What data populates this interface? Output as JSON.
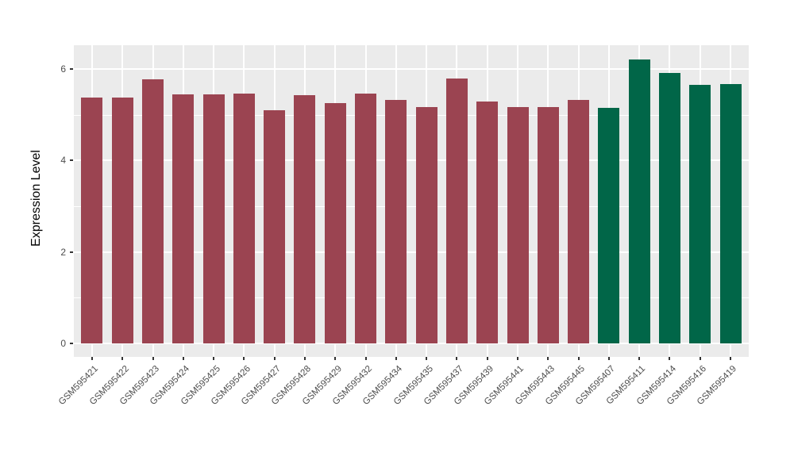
{
  "chart_data": {
    "type": "bar",
    "title": "",
    "xlabel": "",
    "ylabel": "Expression Level",
    "ylim": [
      -0.3,
      6.52
    ],
    "yticks": [
      0,
      2,
      4,
      6
    ],
    "yticks_minor": [
      1,
      3,
      5
    ],
    "grid": "on",
    "legend_position": "none",
    "panel_background": "#EBEBEB",
    "grid_color": "#FFFFFF",
    "axis_text_color": "#4D4D4D",
    "categories": [
      "GSM595421",
      "GSM595422",
      "GSM595423",
      "GSM595424",
      "GSM595425",
      "GSM595426",
      "GSM595427",
      "GSM595428",
      "GSM595429",
      "GSM595432",
      "GSM595434",
      "GSM595435",
      "GSM595437",
      "GSM595439",
      "GSM595441",
      "GSM595443",
      "GSM595445",
      "GSM595407",
      "GSM595411",
      "GSM595414",
      "GSM595416",
      "GSM595419"
    ],
    "values": [
      5.37,
      5.37,
      5.78,
      5.44,
      5.44,
      5.46,
      5.09,
      5.43,
      5.25,
      5.47,
      5.33,
      5.17,
      5.79,
      5.29,
      5.17,
      5.17,
      5.32,
      5.15,
      6.21,
      5.91,
      5.65,
      5.67
    ],
    "bar_group": [
      "red",
      "red",
      "red",
      "red",
      "red",
      "red",
      "red",
      "red",
      "red",
      "red",
      "red",
      "red",
      "red",
      "red",
      "red",
      "red",
      "red",
      "green",
      "green",
      "green",
      "green",
      "green"
    ],
    "group_colors": {
      "red": "#9B4451",
      "green": "#016648"
    }
  }
}
